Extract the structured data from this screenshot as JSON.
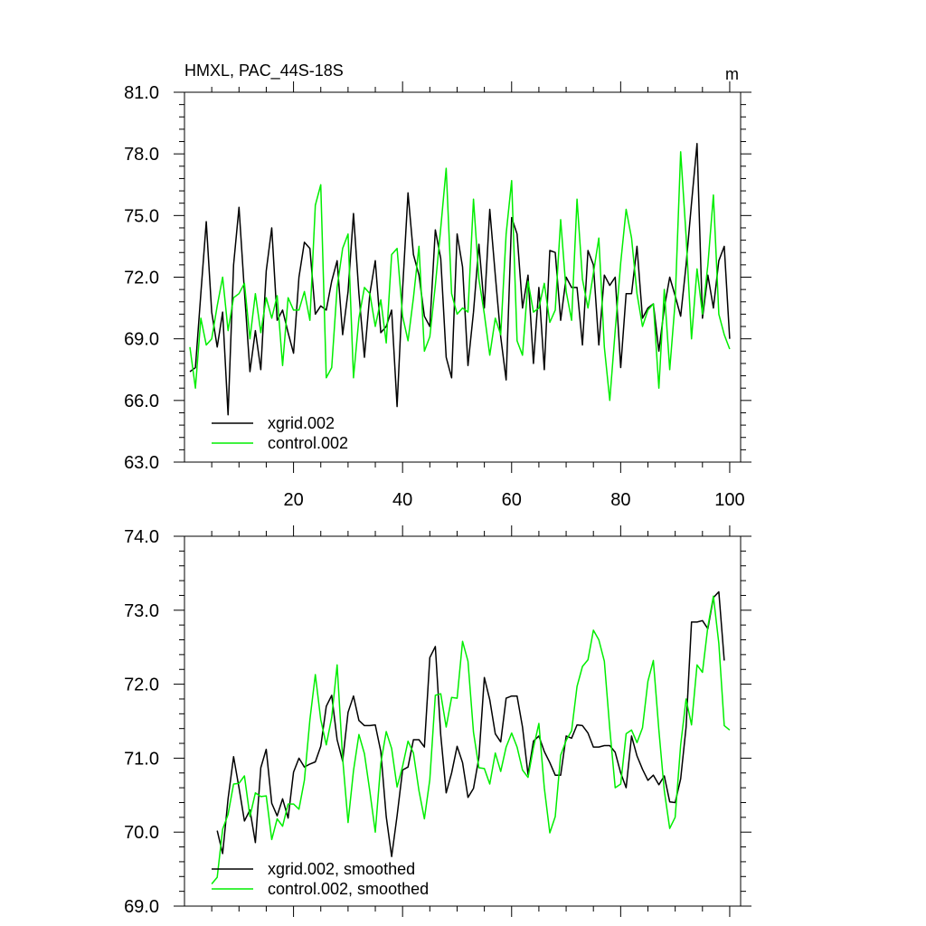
{
  "chart_data": [
    {
      "type": "line",
      "title": "HMXL, PAC_44S-18S",
      "units": "m",
      "xlim": [
        0,
        102
      ],
      "ylim": [
        63,
        81
      ],
      "x_ticks": [
        20,
        40,
        60,
        80,
        100
      ],
      "y_ticks": [
        "63.0",
        "66.0",
        "69.0",
        "72.0",
        "75.0",
        "78.0",
        "81.0"
      ],
      "legend_position": "bottom-left",
      "grid": false,
      "series": [
        {
          "name": "xgrid.002",
          "color": "#000000",
          "x_start": 1,
          "values": [
            67.4,
            67.6,
            71.2,
            74.7,
            70.3,
            68.6,
            70.3,
            65.3,
            72.6,
            75.4,
            71.3,
            67.4,
            69.4,
            67.5,
            72.3,
            74.4,
            69.9,
            70.4,
            69.3,
            68.3,
            72.0,
            73.7,
            73.4,
            70.2,
            70.6,
            70.4,
            71.8,
            72.8,
            69.2,
            71.3,
            75.1,
            71.2,
            68.1,
            71.2,
            72.8,
            69.3,
            69.6,
            70.4,
            65.7,
            71.4,
            76.1,
            73.1,
            72.1,
            70.1,
            69.6,
            74.3,
            72.9,
            68.1,
            67.1,
            74.1,
            72.5,
            67.7,
            70.3,
            73.6,
            70.5,
            75.3,
            72.1,
            69.1,
            67.0,
            74.9,
            74.1,
            70.5,
            72.1,
            67.8,
            71.5,
            67.5,
            73.3,
            73.2,
            69.9,
            72.0,
            71.5,
            71.5,
            68.7,
            73.3,
            72.6,
            68.7,
            72.1,
            71.6,
            72.0,
            67.6,
            71.2,
            71.2,
            73.5,
            70.0,
            70.5,
            70.7,
            68.4,
            70.5,
            72.0,
            71.1,
            70.1,
            72.6,
            75.6,
            78.5,
            70.0,
            72.1,
            70.5,
            72.8,
            73.5,
            69.0
          ]
        },
        {
          "name": "control.002",
          "color": "#00ee00",
          "x_start": 1,
          "values": [
            68.6,
            66.6,
            70.0,
            68.7,
            69.0,
            70.6,
            72.0,
            69.4,
            71.0,
            71.2,
            71.7,
            69.0,
            71.2,
            69.3,
            71.0,
            70.0,
            71.1,
            67.7,
            71.0,
            70.4,
            70.4,
            71.3,
            69.9,
            75.5,
            76.5,
            67.1,
            67.6,
            71.5,
            73.4,
            74.1,
            67.1,
            70.0,
            71.5,
            71.2,
            69.6,
            70.9,
            68.8,
            73.1,
            73.4,
            70.1,
            68.9,
            71.0,
            73.5,
            68.4,
            69.1,
            71.6,
            74.4,
            77.3,
            71.2,
            70.2,
            70.5,
            70.3,
            75.8,
            71.9,
            70.2,
            68.2,
            70.0,
            69.2,
            74.1,
            76.7,
            68.9,
            68.2,
            71.8,
            70.3,
            70.5,
            71.7,
            69.8,
            70.4,
            74.8,
            71.3,
            69.9,
            75.8,
            71.9,
            70.5,
            72.2,
            73.9,
            68.6,
            66.0,
            69.4,
            72.7,
            75.3,
            73.9,
            71.2,
            69.6,
            70.4,
            70.7,
            66.6,
            71.4,
            67.5,
            70.8,
            78.1,
            74.0,
            69.0,
            72.4,
            70.2,
            72.6,
            76.0,
            70.2,
            69.2,
            68.5
          ]
        }
      ]
    },
    {
      "type": "line",
      "xlim": [
        0,
        102
      ],
      "ylim": [
        69,
        74
      ],
      "x_ticks": [
        20,
        40,
        60,
        80,
        100
      ],
      "y_ticks": [
        "69.0",
        "70.0",
        "71.0",
        "72.0",
        "73.0",
        "74.0"
      ],
      "legend_position": "bottom-left",
      "grid": false,
      "series": [
        {
          "name": "xgrid.002, smoothed",
          "color": "#000000",
          "x_start": 6,
          "values": [
            70.02,
            69.71,
            70.45,
            71.02,
            70.6,
            70.15,
            70.3,
            69.86,
            70.87,
            71.12,
            70.39,
            70.22,
            70.45,
            70.19,
            70.81,
            71.0,
            70.88,
            70.92,
            70.95,
            71.16,
            71.7,
            71.85,
            71.25,
            70.96,
            71.62,
            71.84,
            71.51,
            71.44,
            71.44,
            71.45,
            71.09,
            70.21,
            69.67,
            70.22,
            70.84,
            70.88,
            71.25,
            71.25,
            71.15,
            72.36,
            72.51,
            71.31,
            70.53,
            70.8,
            71.16,
            70.94,
            70.47,
            70.59,
            71.01,
            72.09,
            71.79,
            71.33,
            71.22,
            71.81,
            71.84,
            71.84,
            71.42,
            70.78,
            71.23,
            71.3,
            71.09,
            70.94,
            70.77,
            70.77,
            71.3,
            71.27,
            71.45,
            71.44,
            71.34,
            71.15,
            71.15,
            71.17,
            71.17,
            71.08,
            70.8,
            70.6,
            71.3,
            71.03,
            70.85,
            70.7,
            70.77,
            70.64,
            70.76,
            70.41,
            70.4,
            70.72,
            71.42,
            72.84,
            72.84,
            72.86,
            72.75,
            73.17,
            73.25,
            72.32
          ]
        },
        {
          "name": "control.002, smoothed",
          "color": "#00ee00",
          "x_start": 5,
          "values": [
            69.3,
            69.39,
            70.04,
            70.24,
            70.65,
            70.66,
            70.76,
            70.21,
            70.53,
            70.48,
            70.49,
            69.9,
            70.18,
            70.08,
            70.38,
            70.38,
            70.31,
            70.7,
            71.52,
            72.13,
            71.52,
            71.18,
            71.55,
            72.26,
            71.0,
            70.13,
            70.83,
            71.32,
            71.06,
            70.55,
            70.0,
            70.93,
            71.36,
            71.13,
            70.61,
            70.89,
            71.23,
            71.07,
            70.56,
            70.18,
            70.71,
            71.85,
            71.87,
            71.42,
            71.82,
            71.81,
            72.58,
            72.31,
            71.35,
            70.87,
            70.86,
            70.65,
            71.07,
            70.82,
            71.15,
            71.34,
            71.15,
            70.84,
            70.74,
            71.14,
            71.47,
            70.6,
            69.99,
            70.21,
            71.04,
            71.24,
            71.37,
            71.97,
            72.24,
            72.33,
            72.73,
            72.6,
            72.31,
            71.4,
            70.6,
            70.65,
            71.33,
            71.38,
            71.21,
            71.41,
            72.04,
            72.32,
            71.38,
            70.56,
            70.05,
            70.2,
            71.18,
            71.8,
            71.45,
            72.26,
            72.16,
            72.78,
            73.19,
            72.55,
            71.44,
            71.38
          ]
        }
      ]
    }
  ]
}
